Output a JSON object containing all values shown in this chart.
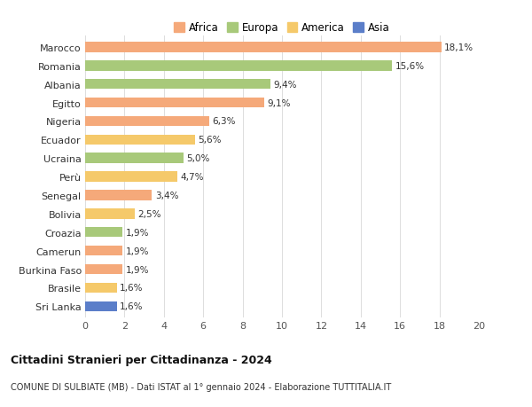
{
  "categories": [
    "Sri Lanka",
    "Brasile",
    "Burkina Faso",
    "Camerun",
    "Croazia",
    "Bolivia",
    "Senegal",
    "Perù",
    "Ucraina",
    "Ecuador",
    "Nigeria",
    "Egitto",
    "Albania",
    "Romania",
    "Marocco"
  ],
  "values": [
    1.6,
    1.6,
    1.9,
    1.9,
    1.9,
    2.5,
    3.4,
    4.7,
    5.0,
    5.6,
    6.3,
    9.1,
    9.4,
    15.6,
    18.1
  ],
  "labels": [
    "1,6%",
    "1,6%",
    "1,9%",
    "1,9%",
    "1,9%",
    "2,5%",
    "3,4%",
    "4,7%",
    "5,0%",
    "5,6%",
    "6,3%",
    "9,1%",
    "9,4%",
    "15,6%",
    "18,1%"
  ],
  "colors": [
    "#5b7ec9",
    "#f5c96a",
    "#f5a97a",
    "#f5a97a",
    "#a8c97a",
    "#f5c96a",
    "#f5a97a",
    "#f5c96a",
    "#a8c97a",
    "#f5c96a",
    "#f5a97a",
    "#f5a97a",
    "#a8c97a",
    "#a8c97a",
    "#f5a97a"
  ],
  "continent": [
    "Asia",
    "America",
    "Africa",
    "Africa",
    "Europa",
    "America",
    "Africa",
    "America",
    "Europa",
    "America",
    "Africa",
    "Africa",
    "Europa",
    "Europa",
    "Africa"
  ],
  "legend_labels": [
    "Africa",
    "Europa",
    "America",
    "Asia"
  ],
  "legend_colors": [
    "#f5a97a",
    "#a8c97a",
    "#f5c96a",
    "#5b7ec9"
  ],
  "title": "Cittadini Stranieri per Cittadinanza - 2024",
  "subtitle": "COMUNE DI SULBIATE (MB) - Dati ISTAT al 1° gennaio 2024 - Elaborazione TUTTITALIA.IT",
  "xlim": [
    0,
    20
  ],
  "xticks": [
    0,
    2,
    4,
    6,
    8,
    10,
    12,
    14,
    16,
    18,
    20
  ],
  "bg_color": "#ffffff",
  "grid_color": "#dddddd",
  "bar_height": 0.55
}
